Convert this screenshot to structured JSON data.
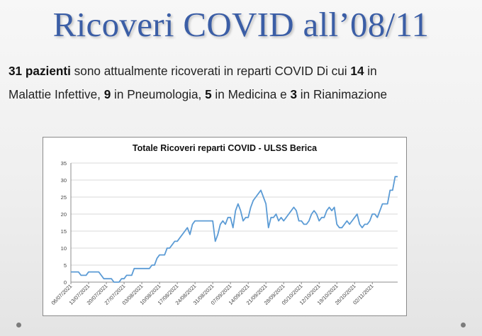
{
  "slide": {
    "title": "Ricoveri COVID all’08/11",
    "line1": [
      {
        "text": "31 pazienti",
        "bold": true
      },
      {
        "text": " sono attualmente ricoverati in reparti COVID Di cui ",
        "bold": false
      },
      {
        "text": "14",
        "bold": true
      },
      {
        "text": " in",
        "bold": false
      }
    ],
    "line2": [
      {
        "text": "Malattie Infettive, ",
        "bold": false
      },
      {
        "text": "9",
        "bold": true
      },
      {
        "text": " in Pneumologia, ",
        "bold": false
      },
      {
        "text": "5",
        "bold": true
      },
      {
        "text": " in Medicina e ",
        "bold": false
      },
      {
        "text": "3",
        "bold": true
      },
      {
        "text": " in Rianimazione",
        "bold": false
      }
    ]
  },
  "colors": {
    "title": "#3b5ea6",
    "line": "#5b9bd5",
    "grid": "#d9d9d9"
  },
  "chart_data": {
    "type": "line",
    "title": "Totale Ricoveri reparti COVID - ULSS Berica",
    "xlabel": "",
    "ylabel": "",
    "ylim": [
      0,
      35
    ],
    "yticks": [
      0,
      5,
      10,
      15,
      20,
      25,
      30,
      35
    ],
    "grid": true,
    "legend": "none",
    "start_date": "06/07/2021",
    "xtick_labels": [
      "06/07/2021",
      "13/07/2021",
      "20/07/2021",
      "27/07/2021",
      "03/08/2021",
      "10/08/2021",
      "17/08/2021",
      "24/08/2021",
      "31/08/2021",
      "07/09/2021",
      "14/09/2021",
      "21/09/2021",
      "28/09/2021",
      "05/10/2021",
      "12/10/2021",
      "19/10/2021",
      "26/10/2021",
      "02/11/2021"
    ],
    "series": [
      {
        "name": "",
        "values": [
          3,
          3,
          3,
          3,
          2,
          2,
          2,
          3,
          3,
          3,
          3,
          3,
          2,
          1,
          1,
          1,
          1,
          0,
          0,
          0,
          1,
          1,
          2,
          2,
          2,
          4,
          4,
          4,
          4,
          4,
          4,
          4,
          5,
          5,
          7,
          8,
          8,
          8,
          10,
          10,
          11,
          12,
          12,
          13,
          14,
          15,
          16,
          14,
          17,
          18,
          18,
          18,
          18,
          18,
          18,
          18,
          18,
          12,
          14,
          17,
          18,
          17,
          19,
          19,
          16,
          21,
          23,
          21,
          18,
          19,
          19,
          22,
          24,
          25,
          26,
          27,
          25,
          23,
          16,
          19,
          19,
          20,
          18,
          19,
          18,
          19,
          20,
          21,
          22,
          21,
          18,
          18,
          17,
          17,
          18,
          20,
          21,
          20,
          18,
          19,
          19,
          21,
          22,
          21,
          22,
          17,
          16,
          16,
          17,
          18,
          17,
          18,
          19,
          20,
          17,
          16,
          17,
          17,
          18,
          20,
          20,
          19,
          21,
          23,
          23,
          23,
          27,
          27,
          31,
          31
        ]
      }
    ]
  }
}
